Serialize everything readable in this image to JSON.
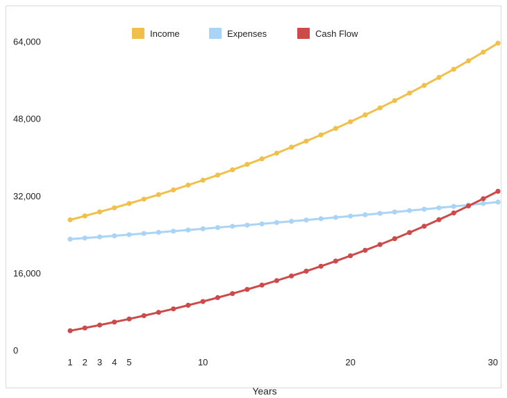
{
  "chart_data": {
    "type": "line",
    "title": "",
    "xlabel": "Years",
    "ylabel": "",
    "xlim": [
      1,
      30
    ],
    "ylim": [
      0,
      70000
    ],
    "x_ticks": [
      1,
      2,
      3,
      4,
      5,
      10,
      20,
      30
    ],
    "y_ticks": [
      0,
      16000,
      32000,
      48000,
      64000
    ],
    "y_tick_labels": [
      "0",
      "16,000",
      "32,000",
      "48,000",
      "64,000"
    ],
    "grid": false,
    "legend": "top-center",
    "x": [
      1,
      2,
      3,
      4,
      5,
      6,
      7,
      8,
      9,
      10,
      11,
      12,
      13,
      14,
      15,
      16,
      17,
      18,
      19,
      20,
      21,
      22,
      23,
      24,
      25,
      26,
      27,
      28,
      29,
      30
    ],
    "series": [
      {
        "name": "Income",
        "color": "#f0c04a",
        "values": [
          27000,
          27810,
          28644,
          29504,
          30389,
          31300,
          32239,
          33207,
          34203,
          35229,
          36286,
          37374,
          38496,
          39650,
          40840,
          42065,
          43327,
          44627,
          45966,
          47345,
          48765,
          50228,
          51735,
          53287,
          54886,
          56532,
          58228,
          59975,
          61774,
          63627
        ]
      },
      {
        "name": "Expenses",
        "color": "#a9d4f5",
        "values": [
          23000,
          23230,
          23462,
          23697,
          23934,
          24173,
          24415,
          24659,
          24906,
          25155,
          25406,
          25660,
          25917,
          26176,
          26438,
          26702,
          26969,
          27239,
          27511,
          27787,
          28064,
          28345,
          28629,
          28915,
          29204,
          29496,
          29791,
          30089,
          30390,
          30694
        ]
      },
      {
        "name": "Cash Flow",
        "color": "#cc4a4a",
        "values": [
          4000,
          4580,
          5182,
          5807,
          6455,
          7127,
          7824,
          8548,
          9297,
          10074,
          10880,
          11714,
          12579,
          13474,
          14402,
          15363,
          16358,
          17388,
          18455,
          19558,
          20701,
          21883,
          23106,
          24372,
          25682,
          27036,
          28437,
          29886,
          31384,
          32933
        ]
      }
    ]
  }
}
